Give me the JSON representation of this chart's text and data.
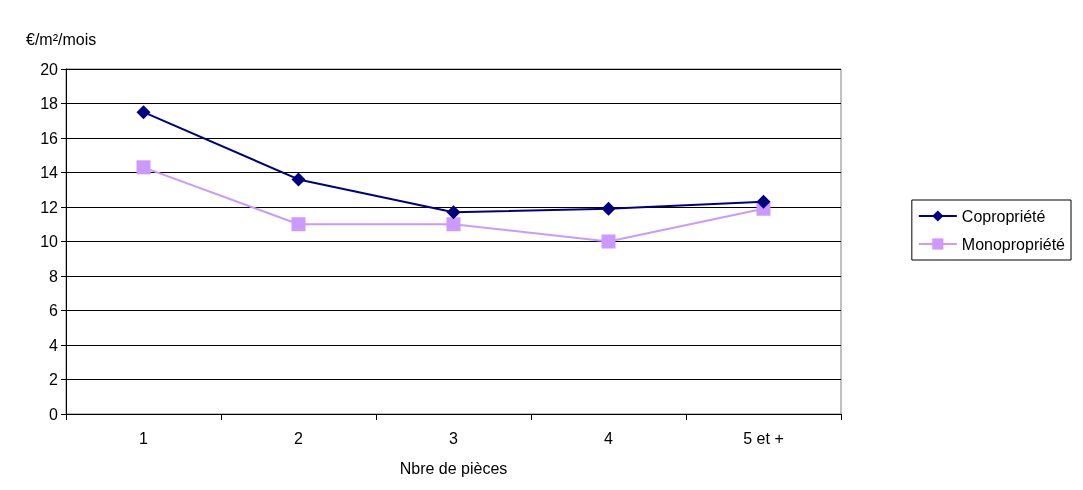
{
  "chart_data": {
    "type": "line",
    "ylabel": "€/m²/mois",
    "xlabel": "Nbre de pièces",
    "categories": [
      "1",
      "2",
      "3",
      "4",
      "5 et +"
    ],
    "series": [
      {
        "name": "Copropriété",
        "color": "#000080",
        "marker": "diamond",
        "values": [
          17.5,
          13.6,
          11.7,
          11.9,
          12.3
        ]
      },
      {
        "name": "Monopropriété",
        "color": "#cc99ff",
        "marker": "square",
        "values": [
          14.3,
          11.0,
          11.0,
          10.0,
          11.9
        ]
      }
    ],
    "ylim": [
      0,
      20
    ],
    "yticks": [
      0,
      2,
      4,
      6,
      8,
      10,
      12,
      14,
      16,
      18,
      20
    ],
    "grid": "y",
    "legend": "right"
  }
}
